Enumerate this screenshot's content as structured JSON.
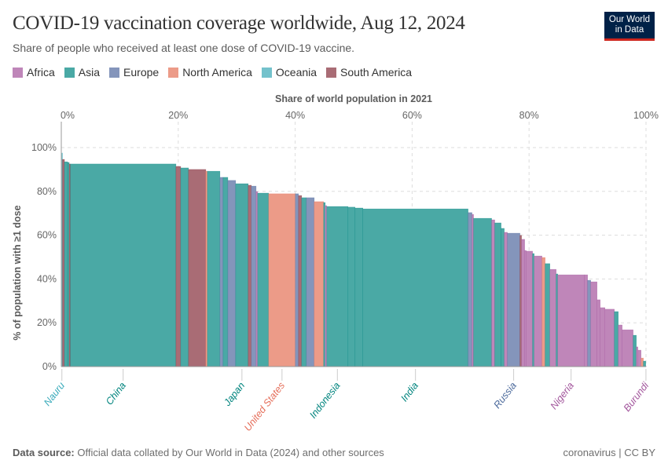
{
  "header": {
    "title": "COVID-19 vaccination coverage worldwide, Aug 12, 2024",
    "subtitle": "Share of people who received at least one dose of COVID-19 vaccine.",
    "logo": "Our World in Data"
  },
  "footer": {
    "source_label": "Data source:",
    "source_text": " Official data collated by Our World in Data (2024) and other sources",
    "license": "coronavirus | CC BY"
  },
  "colors": {
    "Africa": "#bf86b9",
    "Asia": "#4aa9a5",
    "Europe": "#8495bb",
    "North America": "#ec9b88",
    "Oceania": "#74c2cc",
    "South America": "#a96c75"
  },
  "label_colors": {
    "Africa": "#a2559c",
    "Asia": "#00847e",
    "Europe": "#4c6a9c",
    "North America": "#e56e5a",
    "Oceania": "#38aaba",
    "South America": "#883039"
  },
  "chart_data": {
    "type": "marimekko",
    "xlabel": "Share of world population in 2021",
    "ylabel": "% of population with ≥1 dose",
    "xlim": [
      0,
      100
    ],
    "ylim": [
      0,
      100
    ],
    "x_ticks": [
      "0%",
      "20%",
      "40%",
      "60%",
      "80%",
      "100%"
    ],
    "y_ticks": [
      "0%",
      "20%",
      "40%",
      "60%",
      "80%",
      "100%"
    ],
    "grid": true,
    "legend_position": "top-left",
    "legend": [
      "Africa",
      "Asia",
      "Europe",
      "North America",
      "Oceania",
      "South America"
    ],
    "segments": [
      {
        "name": "Nauru",
        "continent": "Oceania",
        "width": 0.2,
        "value": 97.5
      },
      {
        "continent": "South America",
        "width": 0.34,
        "value": 94.6
      },
      {
        "continent": "Asia",
        "width": 0.54,
        "value": 93.5
      },
      {
        "continent": "Asia",
        "width": 0.27,
        "value": 93.2
      },
      {
        "continent": "South America",
        "width": 0.2,
        "value": 92.5
      },
      {
        "name": "China",
        "continent": "Asia",
        "width": 18.08,
        "value": 92.5
      },
      {
        "continent": "South America",
        "width": 0.81,
        "value": 91.4
      },
      {
        "continent": "Asia",
        "width": 1.34,
        "value": 90.7
      },
      {
        "continent": "South America",
        "width": 2.96,
        "value": 90.0
      },
      {
        "continent": "North America",
        "width": 0.27,
        "value": 89.2
      },
      {
        "continent": "Asia",
        "width": 2.15,
        "value": 89.2
      },
      {
        "continent": "Europe",
        "width": 0.54,
        "value": 86.4
      },
      {
        "continent": "Asia",
        "width": 0.81,
        "value": 86.4
      },
      {
        "continent": "Europe",
        "width": 1.34,
        "value": 85.0
      },
      {
        "name": "Japan",
        "continent": "Asia",
        "width": 2.15,
        "value": 83.5
      },
      {
        "continent": "South America",
        "width": 0.54,
        "value": 82.8
      },
      {
        "continent": "Europe",
        "width": 0.81,
        "value": 82.4
      },
      {
        "continent": "Africa",
        "width": 0.27,
        "value": 79.9
      },
      {
        "continent": "Asia",
        "width": 1.88,
        "value": 79.2
      },
      {
        "name": "United States",
        "continent": "North America",
        "width": 4.57,
        "value": 78.9
      },
      {
        "continent": "Europe",
        "width": 0.54,
        "value": 78.9
      },
      {
        "continent": "South America",
        "width": 0.54,
        "value": 78.1
      },
      {
        "continent": "Asia",
        "width": 0.81,
        "value": 77.1
      },
      {
        "continent": "Europe",
        "width": 1.34,
        "value": 77.1
      },
      {
        "continent": "North America",
        "width": 1.61,
        "value": 75.3
      },
      {
        "continent": "Asia",
        "width": 0.27,
        "value": 74.9
      },
      {
        "continent": "Africa",
        "width": 0.27,
        "value": 73.5
      },
      {
        "name": "Indonesia",
        "continent": "Asia",
        "width": 3.63,
        "value": 73.1
      },
      {
        "continent": "Asia",
        "width": 1.21,
        "value": 72.8
      },
      {
        "continent": "Asia",
        "width": 1.34,
        "value": 72.4
      },
      {
        "name": "India",
        "continent": "Asia",
        "width": 18.01,
        "value": 72.0
      },
      {
        "continent": "Europe",
        "width": 0.67,
        "value": 70.3
      },
      {
        "continent": "Africa",
        "width": 0.27,
        "value": 69.5
      },
      {
        "continent": "Asia",
        "width": 3.09,
        "value": 67.7
      },
      {
        "continent": "Africa",
        "width": 0.54,
        "value": 67.0
      },
      {
        "continent": "Asia",
        "width": 1.08,
        "value": 65.6
      },
      {
        "continent": "Asia",
        "width": 0.54,
        "value": 63.1
      },
      {
        "continent": "Africa",
        "width": 0.54,
        "value": 61.3
      },
      {
        "name": "Russia",
        "continent": "Europe",
        "width": 2.15,
        "value": 60.9
      },
      {
        "continent": "South America",
        "width": 0.27,
        "value": 59.9
      },
      {
        "continent": "Africa",
        "width": 0.54,
        "value": 58.1
      },
      {
        "continent": "Africa",
        "width": 0.27,
        "value": 53.0
      },
      {
        "continent": "Africa",
        "width": 1.08,
        "value": 52.7
      },
      {
        "continent": "Asia",
        "width": 0.27,
        "value": 51.6
      },
      {
        "continent": "Africa",
        "width": 1.34,
        "value": 50.5
      },
      {
        "continent": "North America",
        "width": 0.54,
        "value": 49.8
      },
      {
        "continent": "Asia",
        "width": 0.81,
        "value": 47.0
      },
      {
        "continent": "Africa",
        "width": 1.08,
        "value": 44.4
      },
      {
        "continent": "Asia",
        "width": 0.27,
        "value": 42.3
      },
      {
        "name": "Nigeria",
        "continent": "Africa",
        "width": 4.57,
        "value": 41.9
      },
      {
        "continent": "Africa",
        "width": 0.54,
        "value": 41.9
      },
      {
        "continent": "Europe",
        "width": 0.54,
        "value": 39.4
      },
      {
        "continent": "Africa",
        "width": 1.08,
        "value": 38.7
      },
      {
        "continent": "Africa",
        "width": 0.54,
        "value": 30.5
      },
      {
        "continent": "Africa",
        "width": 0.81,
        "value": 26.9
      },
      {
        "continent": "Africa",
        "width": 1.61,
        "value": 26.2
      },
      {
        "continent": "Asia",
        "width": 0.67,
        "value": 25.1
      },
      {
        "continent": "Africa",
        "width": 0.67,
        "value": 19.0
      },
      {
        "continent": "Africa",
        "width": 1.88,
        "value": 16.8
      },
      {
        "continent": "Asia",
        "width": 0.54,
        "value": 14.3
      },
      {
        "continent": "Africa",
        "width": 0.27,
        "value": 9.0
      },
      {
        "continent": "Africa",
        "width": 0.54,
        "value": 7.5
      },
      {
        "continent": "North America",
        "width": 0.4,
        "value": 3.9
      },
      {
        "continent": "Asia",
        "width": 0.4,
        "value": 2.5
      },
      {
        "name": "Burundi",
        "continent": "Africa",
        "width": 0.05,
        "value": 0.2
      }
    ]
  }
}
